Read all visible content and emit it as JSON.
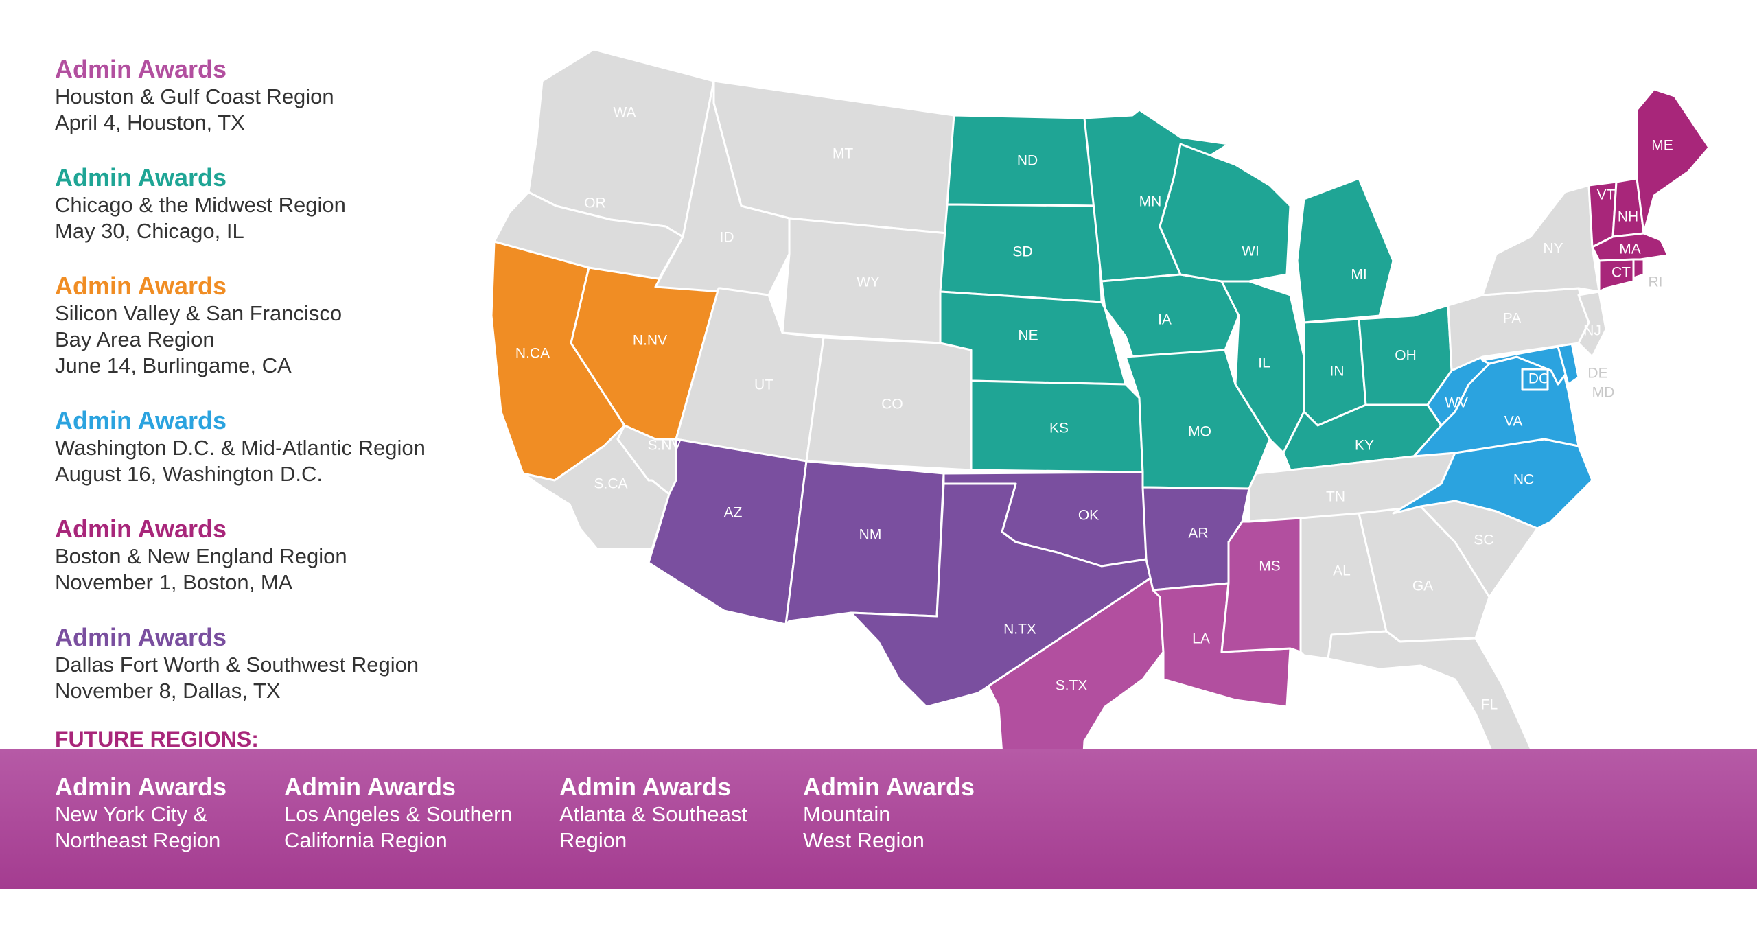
{
  "colors": {
    "pink": "#b24f9f",
    "teal": "#1fa595",
    "orange": "#f08d24",
    "blue": "#2ba3df",
    "magenta": "#a8267a",
    "purple": "#7a4f9f",
    "gray": "#dcdcdc",
    "band": "#a43c90"
  },
  "events": [
    {
      "title": "Admin Awards",
      "lines": [
        "Houston & Gulf Coast Region",
        "April 4, Houston, TX"
      ],
      "color": "#b24f9f"
    },
    {
      "title": "Admin Awards",
      "lines": [
        "Chicago & the Midwest Region",
        "May 30, Chicago, IL"
      ],
      "color": "#1fa595"
    },
    {
      "title": "Admin Awards",
      "lines": [
        "Silicon Valley & San Francisco",
        "Bay Area Region",
        "June 14, Burlingame, CA"
      ],
      "color": "#f08d24"
    },
    {
      "title": "Admin Awards",
      "lines": [
        "Washington D.C. & Mid-Atlantic Region",
        "August 16, Washington D.C."
      ],
      "color": "#2ba3df"
    },
    {
      "title": "Admin Awards",
      "lines": [
        "Boston & New England Region",
        "November 1, Boston, MA"
      ],
      "color": "#a8267a"
    },
    {
      "title": "Admin Awards",
      "lines": [
        "Dallas Fort Worth & Southwest Region",
        "November 8, Dallas, TX"
      ],
      "color": "#7a4f9f"
    }
  ],
  "future": {
    "heading": "FUTURE REGIONS:",
    "heading_color": "#a8267a",
    "items": [
      {
        "title": "Admin Awards",
        "lines": [
          "New York City &",
          "Northeast Region"
        ]
      },
      {
        "title": "Admin Awards",
        "lines": [
          "Los Angeles & Southern",
          "California Region"
        ]
      },
      {
        "title": "Admin Awards",
        "lines": [
          "Atlanta & Southeast",
          "Region"
        ]
      },
      {
        "title": "Admin Awards",
        "lines": [
          "Mountain",
          "West Region"
        ]
      }
    ]
  },
  "states": [
    {
      "label": "WA",
      "region": "gray"
    },
    {
      "label": "OR",
      "region": "gray"
    },
    {
      "label": "N.CA",
      "region": "orange"
    },
    {
      "label": "S.CA",
      "region": "gray"
    },
    {
      "label": "N.NV",
      "region": "orange"
    },
    {
      "label": "S.NV",
      "region": "gray"
    },
    {
      "label": "ID",
      "region": "gray"
    },
    {
      "label": "MT",
      "region": "gray"
    },
    {
      "label": "WY",
      "region": "gray"
    },
    {
      "label": "UT",
      "region": "gray"
    },
    {
      "label": "CO",
      "region": "gray"
    },
    {
      "label": "AZ",
      "region": "purple"
    },
    {
      "label": "NM",
      "region": "purple"
    },
    {
      "label": "ND",
      "region": "teal"
    },
    {
      "label": "SD",
      "region": "teal"
    },
    {
      "label": "NE",
      "region": "teal"
    },
    {
      "label": "KS",
      "region": "teal"
    },
    {
      "label": "OK",
      "region": "purple"
    },
    {
      "label": "N.TX",
      "region": "purple"
    },
    {
      "label": "S.TX",
      "region": "pink"
    },
    {
      "label": "MN",
      "region": "teal"
    },
    {
      "label": "IA",
      "region": "teal"
    },
    {
      "label": "MO",
      "region": "teal"
    },
    {
      "label": "AR",
      "region": "purple"
    },
    {
      "label": "LA",
      "region": "pink"
    },
    {
      "label": "WI",
      "region": "teal"
    },
    {
      "label": "IL",
      "region": "teal"
    },
    {
      "label": "MI",
      "region": "teal"
    },
    {
      "label": "IN",
      "region": "teal"
    },
    {
      "label": "OH",
      "region": "teal"
    },
    {
      "label": "KY",
      "region": "teal"
    },
    {
      "label": "TN",
      "region": "gray"
    },
    {
      "label": "MS",
      "region": "pink"
    },
    {
      "label": "AL",
      "region": "gray"
    },
    {
      "label": "GA",
      "region": "gray"
    },
    {
      "label": "FL",
      "region": "gray"
    },
    {
      "label": "SC",
      "region": "gray"
    },
    {
      "label": "NC",
      "region": "blue"
    },
    {
      "label": "VA",
      "region": "blue"
    },
    {
      "label": "WV",
      "region": "blue"
    },
    {
      "label": "DC",
      "region": "blue"
    },
    {
      "label": "MD",
      "region": "blue"
    },
    {
      "label": "DE",
      "region": "blue"
    },
    {
      "label": "PA",
      "region": "gray"
    },
    {
      "label": "NJ",
      "region": "gray"
    },
    {
      "label": "NY",
      "region": "gray"
    },
    {
      "label": "VT",
      "region": "magenta"
    },
    {
      "label": "NH",
      "region": "magenta"
    },
    {
      "label": "ME",
      "region": "magenta"
    },
    {
      "label": "MA",
      "region": "magenta"
    },
    {
      "label": "CT",
      "region": "magenta"
    },
    {
      "label": "RI",
      "region": "magenta"
    }
  ]
}
